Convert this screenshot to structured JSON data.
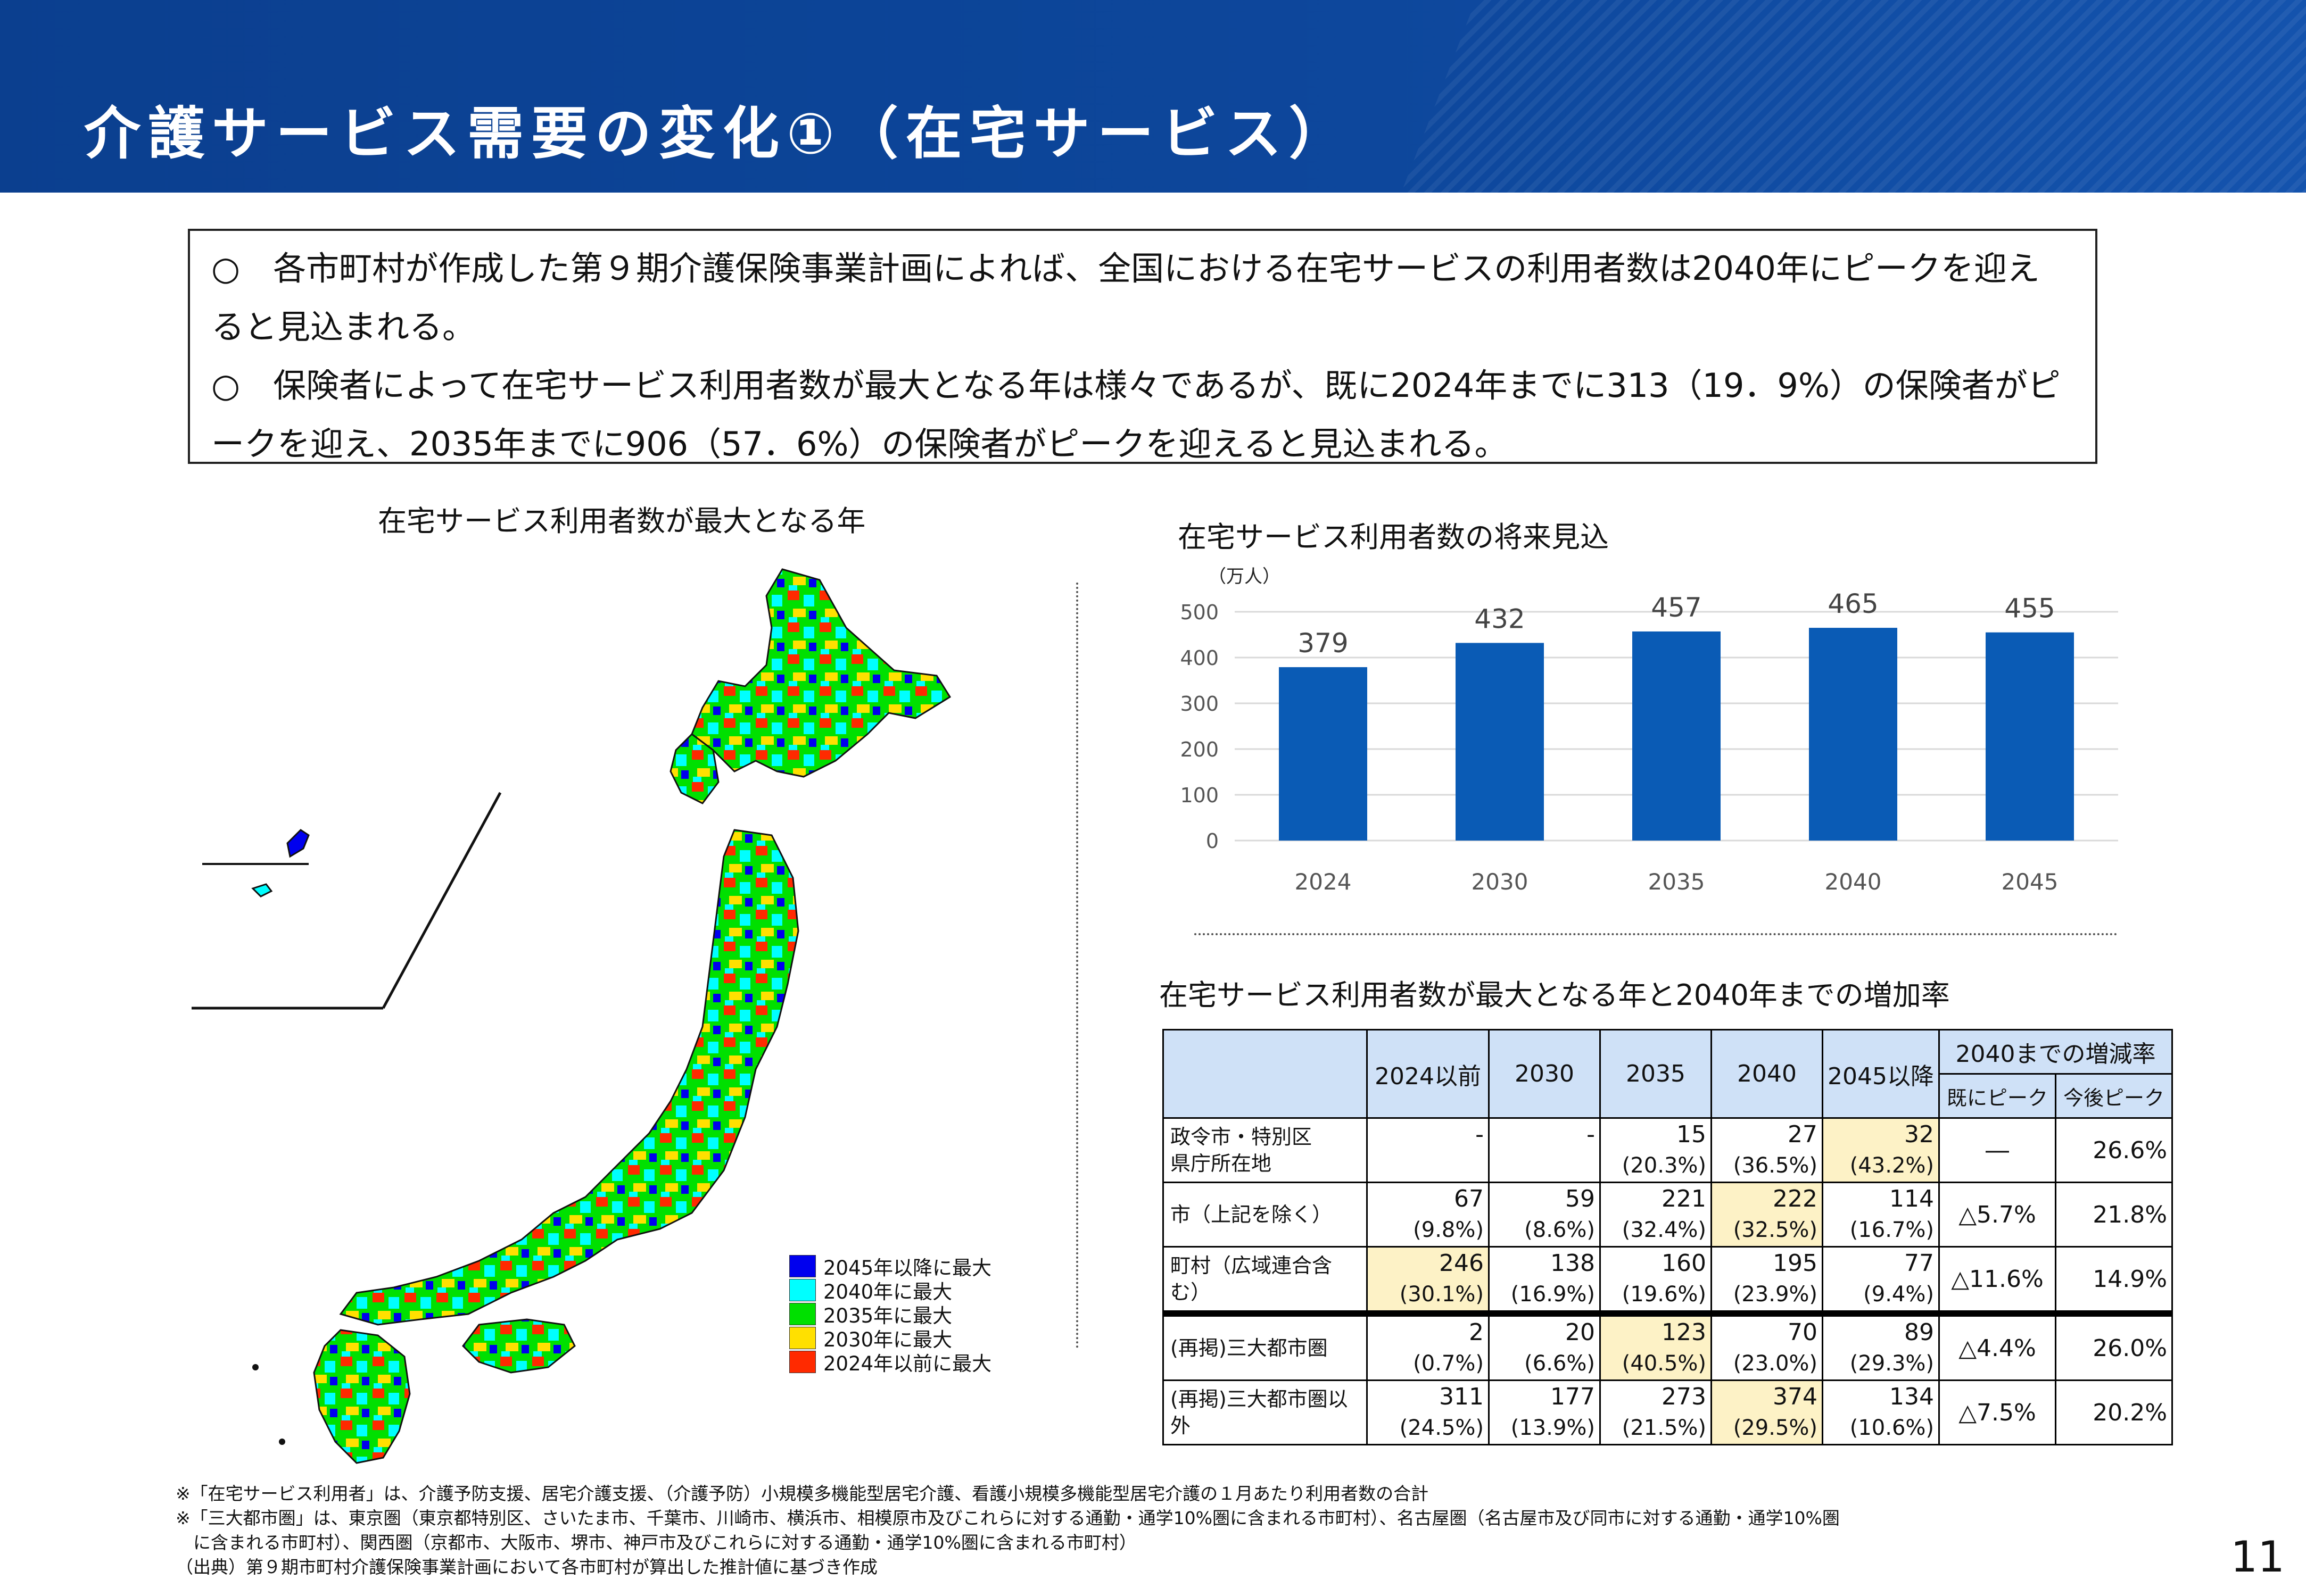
{
  "header": {
    "title": "介護サービス需要の変化①（在宅サービス）"
  },
  "summary": {
    "bullet1": "○　各市町村が作成した第９期介護保険事業計画によれば、全国における在宅サービスの利用者数は2040年にピークを迎えると見込まれる。",
    "bullet2": "○　保険者によって在宅サービス利用者数が最大となる年は様々であるが、既に2024年までに313（19．9%）の保険者がピークを迎え、2035年までに906（57．6%）の保険者がピークを迎えると見込まれる。"
  },
  "map": {
    "title": "在宅サービス利用者数が最大となる年",
    "legend": [
      {
        "label": "2045年以降に最大",
        "color": "#0000ee"
      },
      {
        "label": "2040年に最大",
        "color": "#00ffff"
      },
      {
        "label": "2035年に最大",
        "color": "#00e000"
      },
      {
        "label": "2030年に最大",
        "color": "#ffe000"
      },
      {
        "label": "2024年以前に最大",
        "color": "#ff2a00"
      }
    ]
  },
  "chart_data": {
    "type": "bar",
    "title": "在宅サービス利用者数の将来見込",
    "unit": "（万人）",
    "categories": [
      "2024",
      "2030",
      "2035",
      "2040",
      "2045"
    ],
    "values": [
      379,
      432,
      457,
      465,
      455
    ],
    "ylim": [
      0,
      500
    ],
    "yticks": [
      0,
      100,
      200,
      300,
      400,
      500
    ],
    "grid": true,
    "bar_color": "#0a5bb5"
  },
  "growth_table": {
    "title": "在宅サービス利用者数が最大となる年と2040年までの増加率",
    "headers": [
      "2024以前",
      "2030",
      "2035",
      "2040",
      "2045以降"
    ],
    "rate_header": "2040までの増減率",
    "rate_subheaders": [
      "既にピーク",
      "今後ピーク"
    ],
    "rows": [
      {
        "label": "政令市・特別区\n県庁所在地",
        "cells": [
          [
            "-",
            ""
          ],
          [
            "-",
            ""
          ],
          [
            "15",
            "(20.3%)"
          ],
          [
            "27",
            "(36.5%)"
          ],
          [
            "32",
            "(43.2%)"
          ]
        ],
        "highlight": 4,
        "already": "―",
        "future": "26.6%"
      },
      {
        "label": "市（上記を除く）",
        "cells": [
          [
            "67",
            "(9.8%)"
          ],
          [
            "59",
            "(8.6%)"
          ],
          [
            "221",
            "(32.4%)"
          ],
          [
            "222",
            "(32.5%)"
          ],
          [
            "114",
            "(16.7%)"
          ]
        ],
        "highlight": 3,
        "already": "△5.7%",
        "future": "21.8%"
      },
      {
        "label": "町村（広域連合含む）",
        "cells": [
          [
            "246",
            "(30.1%)"
          ],
          [
            "138",
            "(16.9%)"
          ],
          [
            "160",
            "(19.6%)"
          ],
          [
            "195",
            "(23.9%)"
          ],
          [
            "77",
            "(9.4%)"
          ]
        ],
        "highlight": 0,
        "already": "△11.6%",
        "future": "14.9%"
      },
      {
        "label": "(再掲)三大都市圏",
        "cells": [
          [
            "2",
            "(0.7%)"
          ],
          [
            "20",
            "(6.6%)"
          ],
          [
            "123",
            "(40.5%)"
          ],
          [
            "70",
            "(23.0%)"
          ],
          [
            "89",
            "(29.3%)"
          ]
        ],
        "highlight": 2,
        "already": "△4.4%",
        "future": "26.0%"
      },
      {
        "label": "(再掲)三大都市圏以外",
        "cells": [
          [
            "311",
            "(24.5%)"
          ],
          [
            "177",
            "(13.9%)"
          ],
          [
            "273",
            "(21.5%)"
          ],
          [
            "374",
            "(29.5%)"
          ],
          [
            "134",
            "(10.6%)"
          ]
        ],
        "highlight": 3,
        "already": "△7.5%",
        "future": "20.2%"
      }
    ]
  },
  "notes": [
    "※「在宅サービス利用者」は、介護予防支援、居宅介護支援、（介護予防）小規模多機能型居宅介護、看護小規模多機能型居宅介護の１月あたり利用者数の合計",
    "※「三大都市圏」は、東京圏（東京都特別区、さいたま市、千葉市、川崎市、横浜市、相模原市及びこれらに対する通勤・通学10%圏に含まれる市町村）、名古屋圏（名古屋市及び同市に対する通勤・通学10%圏",
    "　に含まれる市町村）、関西圏（京都市、大阪市、堺市、神戸市及びこれらに対する通勤・通学10%圏に含まれる市町村）",
    "（出典）第９期市町村介護保険事業計画において各市町村が算出した推計値に基づき作成"
  ],
  "page_number": "11"
}
